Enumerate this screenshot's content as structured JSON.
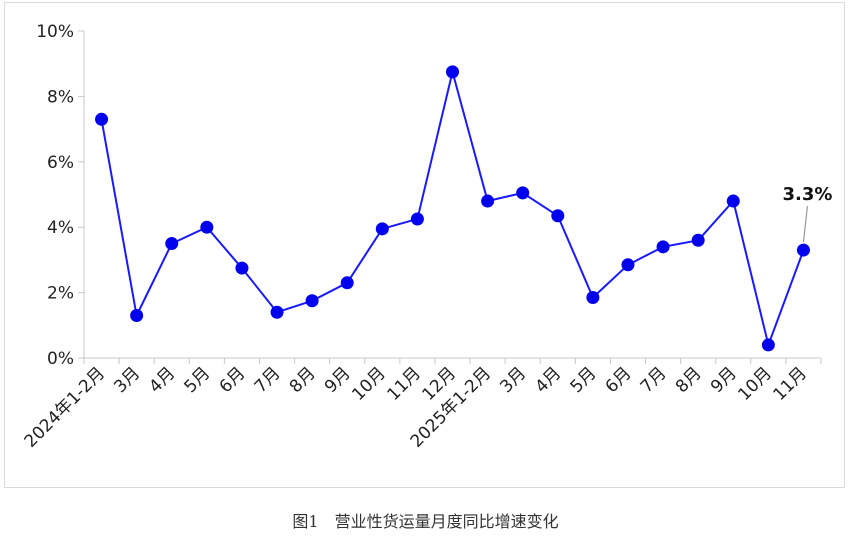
{
  "caption": "图1　营业性货运量月度同比增速变化",
  "chart_data": {
    "type": "line",
    "categories": [
      "2024年1-2月",
      "3月",
      "4月",
      "5月",
      "6月",
      "7月",
      "8月",
      "9月",
      "10月",
      "11月",
      "12月",
      "2025年1-2月",
      "3月",
      "4月",
      "5月",
      "6月",
      "7月",
      "8月",
      "9月",
      "10月",
      "11月"
    ],
    "series": [
      {
        "values": [
          7.3,
          1.3,
          3.5,
          4.0,
          2.75,
          1.4,
          1.75,
          2.3,
          3.95,
          4.25,
          8.75,
          4.8,
          5.05,
          4.35,
          1.85,
          2.85,
          3.4,
          3.6,
          4.8,
          0.4,
          3.3
        ],
        "color": "#1a1aff"
      }
    ],
    "ylim": [
      0,
      10
    ],
    "yticks": [
      "0%",
      "2%",
      "4%",
      "6%",
      "8%",
      "10%"
    ],
    "annotation": {
      "index": 20,
      "text": "3.3%"
    },
    "grid": false,
    "line_color": "#1a1aff",
    "marker_color": "#0000ee"
  }
}
